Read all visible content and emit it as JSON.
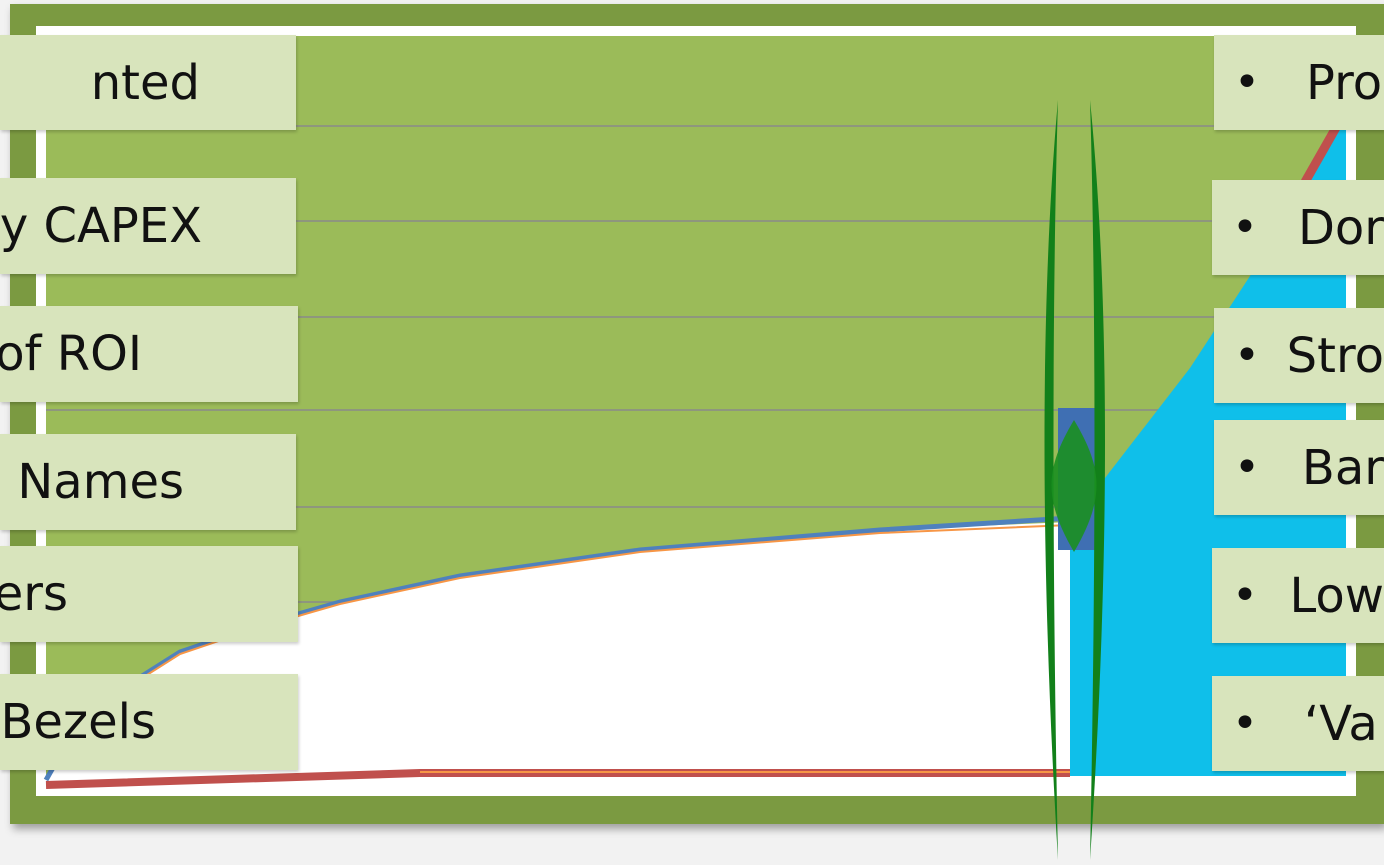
{
  "left_labels": [
    {
      "text": "nted"
    },
    {
      "text": "y CAPEX"
    },
    {
      "text": "of ROI"
    },
    {
      "text": "Names"
    },
    {
      "text": "ers"
    },
    {
      "text": "Bezels"
    }
  ],
  "right_labels": [
    {
      "bullet": "•",
      "text": "Pro"
    },
    {
      "bullet": "•",
      "text": "Dor"
    },
    {
      "bullet": "•",
      "text": "Stro"
    },
    {
      "bullet": "•",
      "text": "Bar"
    },
    {
      "bullet": "•",
      "text": "Low"
    },
    {
      "bullet": "•",
      "text": "‘Va"
    }
  ],
  "colors": {
    "frame": "#7b9a41",
    "area_green": "#9bbb59",
    "area_white": "#ffffff",
    "area_cyan": "#0fbfea",
    "line_red": "#c0504d",
    "line_blue": "#4f81bd",
    "divider_green": "#12801a",
    "label_bg": "#d8e4bc"
  }
}
